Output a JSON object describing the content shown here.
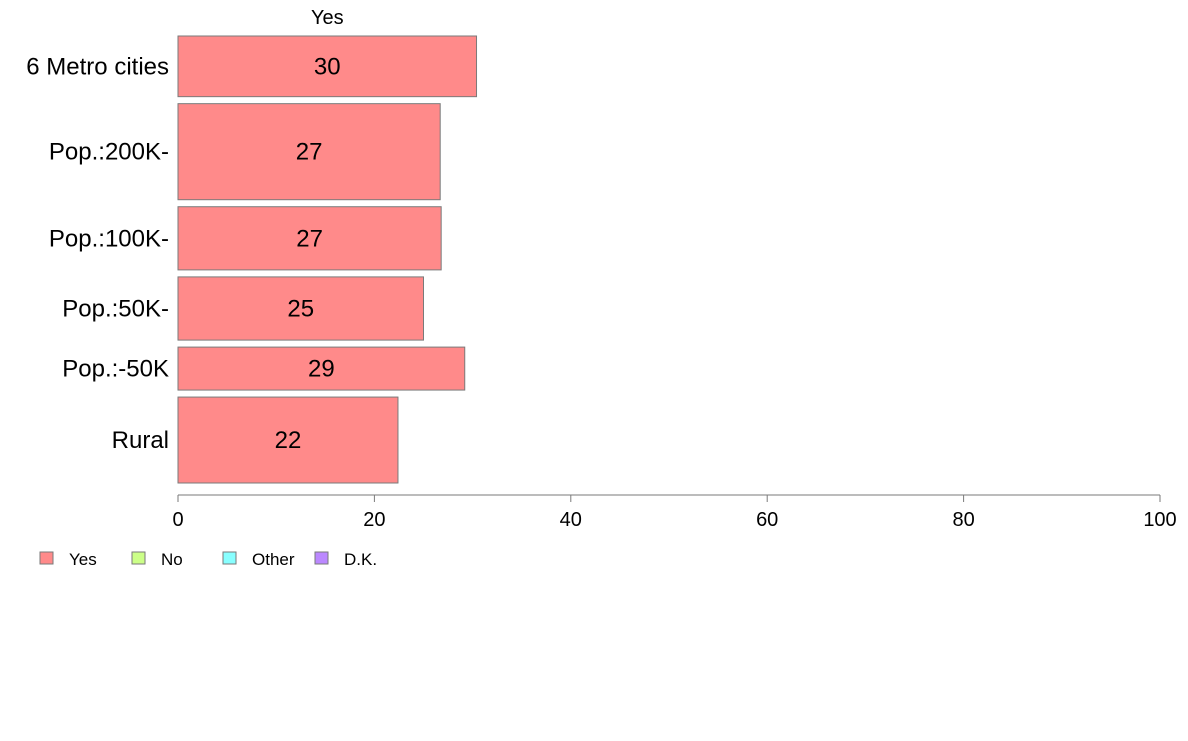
{
  "chart_data": {
    "type": "bar",
    "orientation": "horizontal",
    "stacked": true,
    "segment_title": "Yes",
    "categories": [
      "6 Metro cities",
      "Pop.:200K-",
      "Pop.:100K-",
      "Pop.:50K-",
      "Pop.:-50K",
      "Rural"
    ],
    "bar_widths": [
      0.24,
      0.38,
      0.25,
      0.25,
      0.17,
      0.34
    ],
    "series": [
      {
        "name": "Yes",
        "color": "#ff8a8a",
        "values": [
          30.4,
          26.7,
          26.8,
          25.0,
          29.2,
          22.4
        ],
        "labels": [
          "30",
          "27",
          "27",
          "25",
          "29",
          "22"
        ]
      }
    ],
    "legend": [
      {
        "label": "Yes",
        "color": "#ff8a8a"
      },
      {
        "label": "No",
        "color": "#ccff88"
      },
      {
        "label": "Other",
        "color": "#88ffff"
      },
      {
        "label": "D.K.",
        "color": "#bb88ff"
      }
    ],
    "legend_position": "bottom-left",
    "xlim": [
      0,
      100
    ],
    "xticks": [
      0,
      20,
      40,
      60,
      80,
      100
    ],
    "grid": false
  }
}
